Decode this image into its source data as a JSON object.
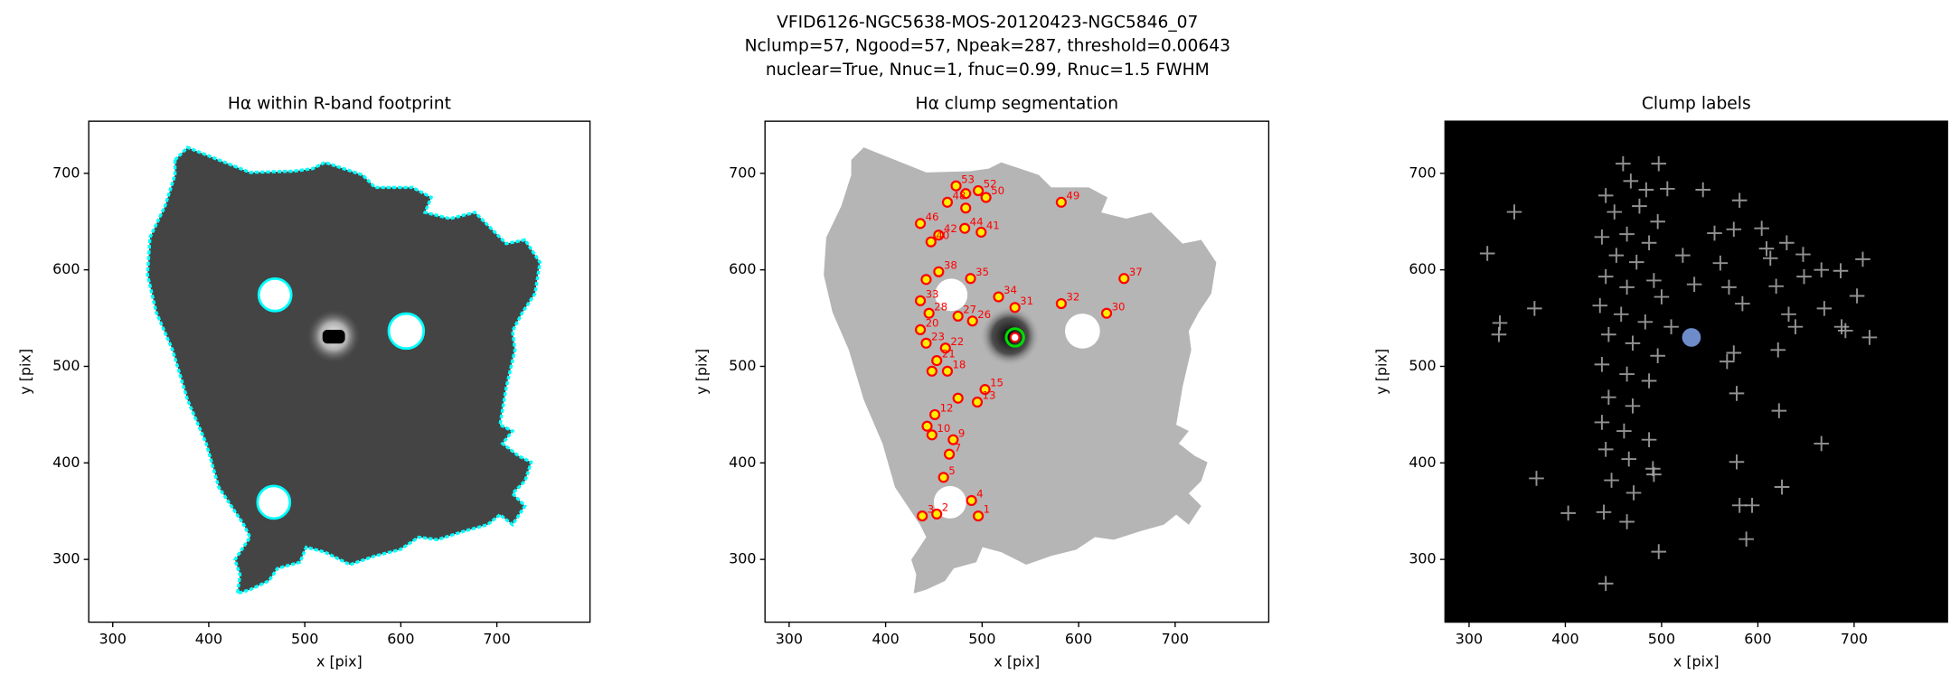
{
  "figure_title": [
    "VFID6126-NGC5638-MOS-20120423-NGC5846_07",
    "Nclump=57, Ngood=57, Npeak=287, threshold=0.00643",
    "nuclear=True, Nnuc=1, fnuc=0.99, Rnuc=1.5 FWHM"
  ],
  "chart_data": [
    {
      "type": "image",
      "title": "Hα within R-band footprint",
      "x_label": "x [pix]",
      "y_label": "y [pix]",
      "xlim": [
        275,
        797
      ],
      "ylim": [
        235,
        754
      ],
      "xticks": [
        300,
        400,
        500,
        600,
        700
      ],
      "yticks": [
        300,
        400,
        500,
        600,
        700
      ],
      "image_color": "#444444",
      "edge_color": "#00ffff"
    },
    {
      "type": "scatter",
      "title": "Hα clump segmentation",
      "x_label": "x [pix]",
      "y_label": "y [pix]",
      "xlim": [
        275,
        797
      ],
      "ylim": [
        235,
        754
      ],
      "xticks": [
        300,
        400,
        500,
        600,
        700
      ],
      "yticks": [
        300,
        400,
        500,
        600,
        700
      ],
      "image_color": "#b5b5b5",
      "series": [
        {
          "color": "#ff0000",
          "marker": "o",
          "x": [
            473,
            483,
            496,
            504,
            464,
            483,
            582,
            436,
            482,
            499,
            455,
            447,
            455,
            442,
            488,
            647,
            436,
            517,
            534,
            582,
            629,
            445,
            475,
            490,
            436,
            442,
            462,
            453,
            448,
            464,
            503,
            475,
            495,
            451,
            443,
            448,
            470,
            466,
            460,
            489,
            438,
            453,
            496
          ],
          "y": [
            687,
            679,
            682,
            675,
            670,
            664,
            670,
            648,
            643,
            639,
            636,
            629,
            598,
            590,
            591,
            591,
            568,
            572,
            561,
            565,
            555,
            555,
            552,
            547,
            538,
            524,
            519,
            506,
            495,
            495,
            476,
            467,
            463,
            450,
            438,
            429,
            424,
            409,
            385,
            361,
            345,
            347,
            345
          ],
          "labels": [
            "53",
            null,
            "52",
            "50",
            "48",
            null,
            "49",
            "46",
            "44",
            "41",
            "42",
            "40",
            "38",
            null,
            "35",
            "37",
            "33",
            "34",
            "31",
            "32",
            "30",
            "28",
            "27",
            "26",
            "20",
            "23",
            "22",
            "21",
            null,
            "18",
            "15",
            null,
            "13",
            "12",
            null,
            "10",
            "9",
            "7",
            "5",
            "4",
            "3",
            "2",
            "1"
          ]
        },
        {
          "color": "#00dd00",
          "marker": "nucleus",
          "x": [
            534
          ],
          "y": [
            530
          ]
        }
      ]
    },
    {
      "type": "scatter",
      "title": "Clump labels",
      "x_label": "x [pix]",
      "y_label": "y [pix]",
      "xlim": [
        275,
        797
      ],
      "ylim": [
        235,
        754
      ],
      "xticks": [
        300,
        400,
        500,
        600,
        700
      ],
      "yticks": [
        300,
        400,
        500,
        600,
        700
      ],
      "background": "#000000",
      "series": [
        {
          "color": "#aaaaaa",
          "marker": "+",
          "x": [
            347,
            319,
            332,
            331,
            368,
            370,
            506,
            543,
            581,
            555,
            575,
            604,
            609,
            561,
            522,
            570,
            613,
            630,
            647,
            666,
            686,
            709,
            648,
            619,
            632,
            639,
            669,
            703,
            691,
            716,
            687,
            584,
            568,
            575,
            621,
            578,
            622,
            666,
            578,
            581,
            594,
            588,
            625,
            534,
            500,
            510,
            491,
            497,
            442,
            403,
            460,
            497,
            442,
            468,
            484,
            451,
            477,
            496,
            438,
            464,
            487,
            453,
            474,
            442,
            464,
            492,
            436,
            458,
            483,
            445,
            470,
            496,
            438,
            464,
            487,
            445,
            470,
            438,
            461,
            487,
            442,
            466,
            492,
            448,
            471,
            440,
            464
          ],
          "y": [
            660,
            617,
            545,
            533,
            560,
            384,
            684,
            683,
            672,
            638,
            642,
            643,
            622,
            607,
            615,
            582,
            612,
            628,
            616,
            600,
            599,
            611,
            593,
            583,
            554,
            541,
            560,
            573,
            537,
            530,
            541,
            565,
            505,
            514,
            517,
            472,
            454,
            420,
            401,
            356,
            356,
            321,
            375,
            585,
            572,
            541,
            394,
            308,
            275,
            348,
            710,
            710,
            677,
            692,
            683,
            660,
            666,
            650,
            634,
            637,
            628,
            615,
            608,
            593,
            582,
            589,
            563,
            554,
            546,
            533,
            524,
            511,
            502,
            492,
            485,
            468,
            459,
            442,
            433,
            424,
            414,
            404,
            388,
            382,
            369,
            349,
            339
          ]
        },
        {
          "color": "#7a9be0",
          "marker": "nucleus",
          "x": [
            531
          ],
          "y": [
            530
          ]
        }
      ]
    }
  ]
}
